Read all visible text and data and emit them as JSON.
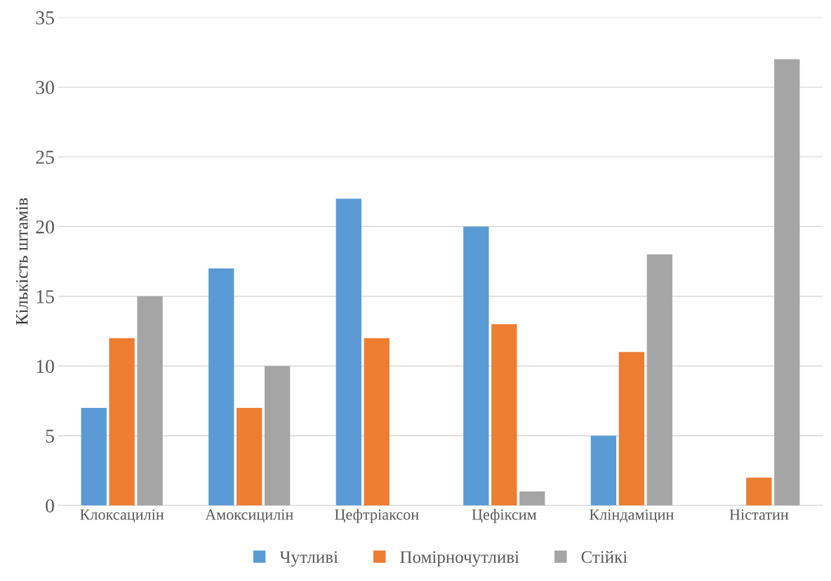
{
  "chart_data": {
    "type": "bar",
    "ylabel": "Кількість штамів",
    "categories": [
      "Клоксацилін",
      "Амоксицилін",
      "Цефтріаксон",
      "Цефіксим",
      "Кліндаміцин",
      "Ністатин"
    ],
    "series": [
      {
        "name": "Чутливі",
        "color": "#5b9bd5",
        "values": [
          7,
          17,
          22,
          20,
          5,
          0
        ]
      },
      {
        "name": "Помірночутливі",
        "color": "#ed7d31",
        "values": [
          12,
          7,
          12,
          13,
          11,
          2
        ]
      },
      {
        "name": "Стійкі",
        "color": "#a5a5a5",
        "values": [
          15,
          10,
          0,
          1,
          18,
          32
        ]
      }
    ],
    "ylim": [
      0,
      35
    ],
    "yticks": [
      0,
      5,
      10,
      15,
      20,
      25,
      30,
      35
    ],
    "grid": "y",
    "legend": "bottom"
  }
}
